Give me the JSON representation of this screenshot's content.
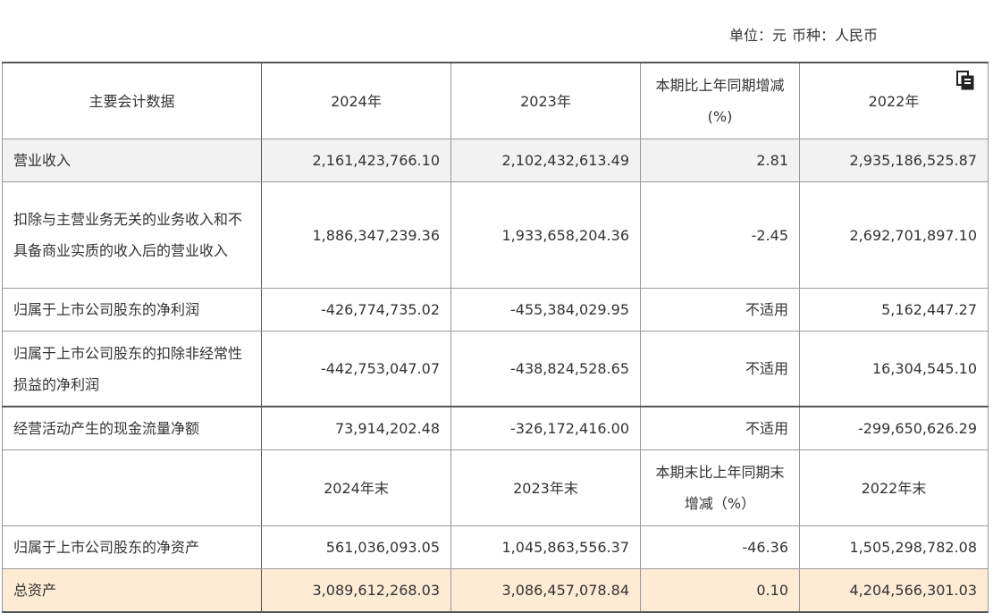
{
  "unit": {
    "label1": "单位：元",
    "label2": "币种：人民币"
  },
  "copy_icon": "copy-icon",
  "header": [
    "主要会计数据",
    "2024年",
    "2023年",
    "本期比上年同期增减(%)",
    "2022年"
  ],
  "rows": [
    [
      "营业收入",
      "2,161,423,766.10",
      "2,102,432,613.49",
      "2.81",
      "2,935,186,525.87"
    ],
    [
      "扣除与主营业务无关的业务收入和不具备商业实质的收入后的营业收入",
      "1,886,347,239.36",
      "1,933,658,204.36",
      "-2.45",
      "2,692,701,897.10"
    ],
    [
      "归属于上市公司股东的净利润",
      "-426,774,735.02",
      "-455,384,029.95",
      "不适用",
      "5,162,447.27"
    ],
    [
      "归属于上市公司股东的扣除非经常性损益的净利润",
      "-442,753,047.07",
      "-438,824,528.65",
      "不适用",
      "16,304,545.10"
    ],
    [
      "经营活动产生的现金流量净额",
      "73,914,202.48",
      "-326,172,416.00",
      "不适用",
      "-299,650,626.29"
    ]
  ],
  "header2": [
    "",
    "2024年末",
    "2023年末",
    "本期末比上年同期末增减（%）",
    "2022年末"
  ],
  "rows2": [
    [
      "归属于上市公司股东的净资产",
      "561,036,093.05",
      "1,045,863,556.37",
      "-46.36",
      "1,505,298,782.08"
    ],
    [
      "总资产",
      "3,089,612,268.03",
      "3,086,457,078.84",
      "0.10",
      "4,204,566,301.03"
    ]
  ]
}
